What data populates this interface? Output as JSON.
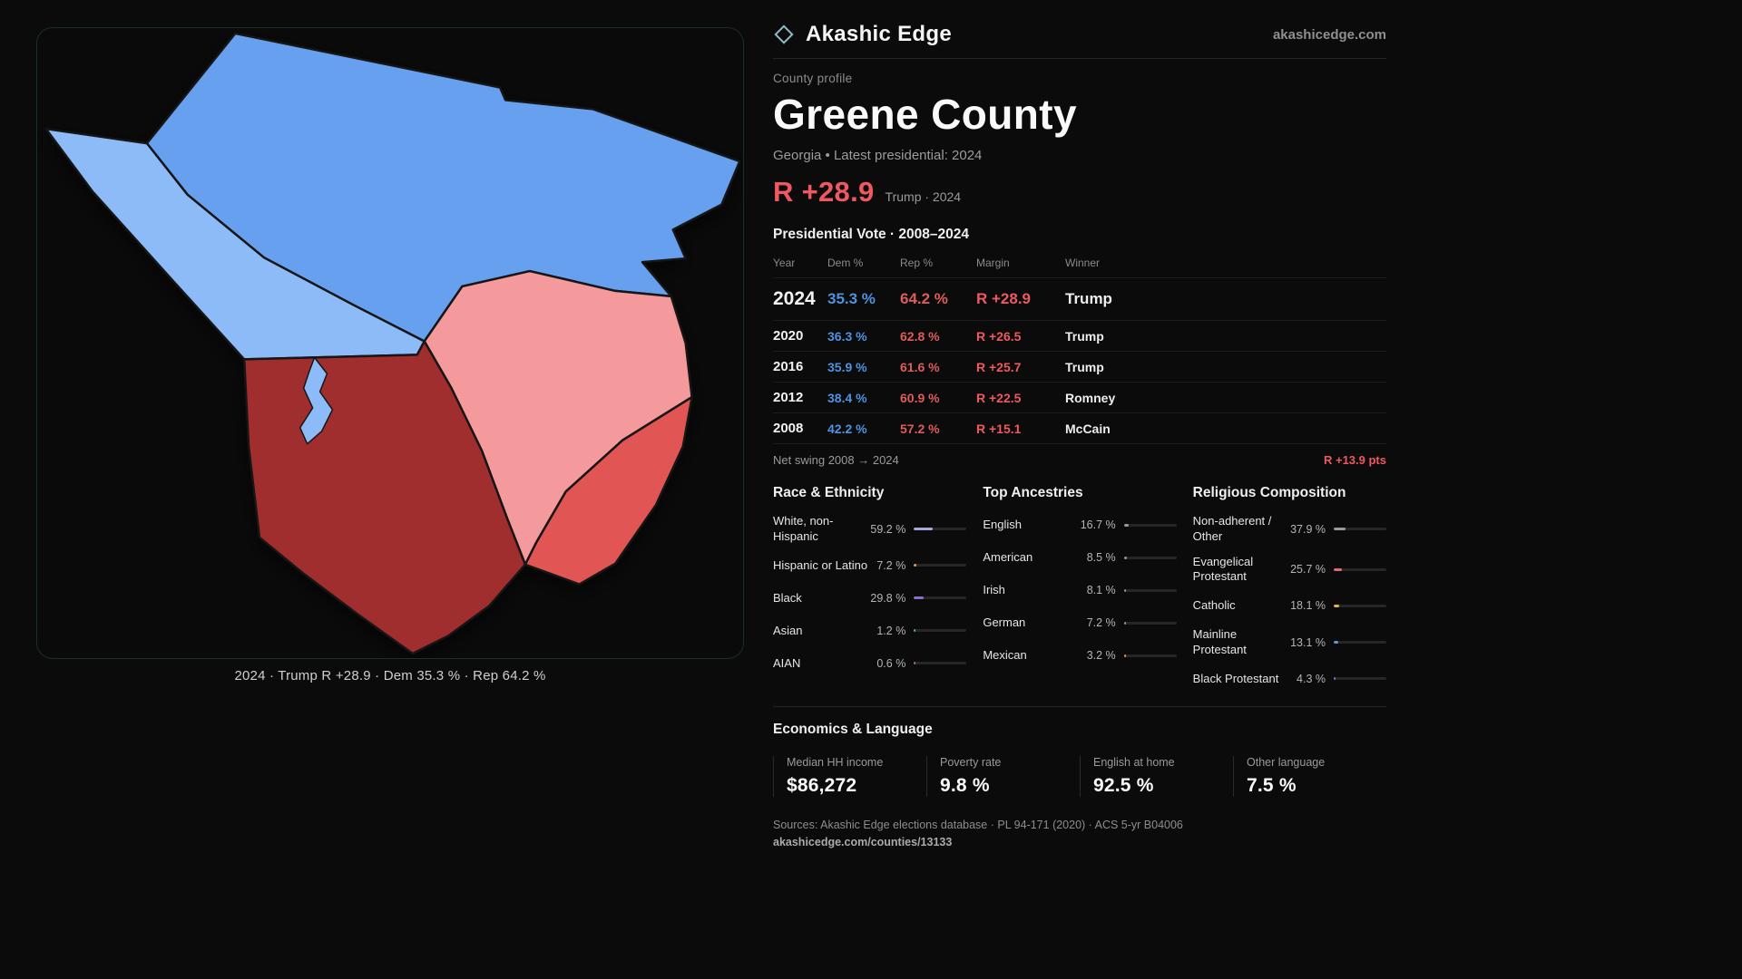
{
  "theme": {
    "dem_blue": "#4f93e0",
    "rep_red": "#e05c5c",
    "margin_red": "#ef5860",
    "map_blue": "#68a0f0",
    "map_light_blue": "#8dbbf8",
    "map_pink": "#f49a9d",
    "map_red": "#e15454",
    "map_dark_red": "#a12f2f"
  },
  "brand": {
    "name": "Akashic Edge",
    "domain": "akashicedge.com"
  },
  "map": {
    "caption": "2024 · Trump R +28.9 · Dem 35.3 % · Rep 64.2 %"
  },
  "profile": {
    "kicker": "County profile",
    "title": "Greene County",
    "subtitle": "Georgia • Latest presidential: 2024",
    "headline_margin": "R +28.9",
    "headline_context": "Trump · 2024"
  },
  "vote_table": {
    "title": "Presidential Vote · 2008–2024",
    "columns": {
      "year": "Year",
      "dem": "Dem %",
      "rep": "Rep %",
      "margin": "Margin",
      "winner": "Winner"
    },
    "rows": [
      {
        "year": "2024",
        "dem": "35.3 %",
        "rep": "64.2 %",
        "margin": "R +28.9",
        "winner": "Trump"
      },
      {
        "year": "2020",
        "dem": "36.3 %",
        "rep": "62.8 %",
        "margin": "R +26.5",
        "winner": "Trump"
      },
      {
        "year": "2016",
        "dem": "35.9 %",
        "rep": "61.6 %",
        "margin": "R +25.7",
        "winner": "Trump"
      },
      {
        "year": "2012",
        "dem": "38.4 %",
        "rep": "60.9 %",
        "margin": "R +22.5",
        "winner": "Romney"
      },
      {
        "year": "2008",
        "dem": "42.2 %",
        "rep": "57.2 %",
        "margin": "R +15.1",
        "winner": "McCain"
      }
    ],
    "net_swing_label": "Net swing 2008 → 2024",
    "net_swing_value": "R +13.9 pts"
  },
  "demographics": {
    "race": {
      "title": "Race & Ethnicity",
      "rows": [
        {
          "label": "White, non-Hispanic",
          "value": "59.2 %",
          "pct": 59.2,
          "color": "#a3abd4"
        },
        {
          "label": "Hispanic or Latino",
          "value": "7.2 %",
          "pct": 7.2,
          "color": "#e8a33d"
        },
        {
          "label": "Black",
          "value": "29.8 %",
          "pct": 29.8,
          "color": "#8b6fd0"
        },
        {
          "label": "Asian",
          "value": "1.2 %",
          "pct": 1.2,
          "color": "#4db6ac"
        },
        {
          "label": "AIAN",
          "value": "0.6 %",
          "pct": 0.6,
          "color": "#d06060"
        }
      ]
    },
    "ancestries": {
      "title": "Top Ancestries",
      "rows": [
        {
          "label": "English",
          "value": "16.7 %",
          "pct": 16.7,
          "color": "#9a9a9a"
        },
        {
          "label": "American",
          "value": "8.5 %",
          "pct": 8.5,
          "color": "#9a9a9a"
        },
        {
          "label": "Irish",
          "value": "8.1 %",
          "pct": 8.1,
          "color": "#9a9a9a"
        },
        {
          "label": "German",
          "value": "7.2 %",
          "pct": 7.2,
          "color": "#9a9a9a"
        },
        {
          "label": "Mexican",
          "value": "3.2 %",
          "pct": 3.2,
          "color": "#e8a33d"
        }
      ]
    },
    "religion": {
      "title": "Religious Composition",
      "rows": [
        {
          "label": "Non-adherent / Other",
          "value": "37.9 %",
          "pct": 37.9,
          "color": "#9a9a9a"
        },
        {
          "label": "Evangelical Protestant",
          "value": "25.7 %",
          "pct": 25.7,
          "color": "#e06b6b"
        },
        {
          "label": "Catholic",
          "value": "18.1 %",
          "pct": 18.1,
          "color": "#e3b341"
        },
        {
          "label": "Mainline Protestant",
          "value": "13.1 %",
          "pct": 13.1,
          "color": "#5b9bd5"
        },
        {
          "label": "Black Protestant",
          "value": "4.3 %",
          "pct": 4.3,
          "color": "#8b6fd0"
        }
      ]
    }
  },
  "economics": {
    "title": "Economics & Language",
    "stats": [
      {
        "label": "Median HH income",
        "value": "$86,272"
      },
      {
        "label": "Poverty rate",
        "value": "9.8 %"
      },
      {
        "label": "English at home",
        "value": "92.5 %"
      },
      {
        "label": "Other language",
        "value": "7.5 %"
      }
    ]
  },
  "footer": {
    "sources": "Sources: Akashic Edge elections database · PL 94-171 (2020) · ACS 5-yr B04006",
    "permalink": "akashicedge.com/counties/13133"
  }
}
